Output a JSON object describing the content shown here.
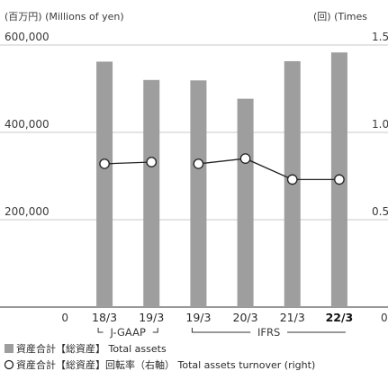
{
  "chart_data": {
    "type": "bar",
    "left_unit_label": "(百万円) (Millions of yen)",
    "right_unit_label": "(回) (Times",
    "categories": [
      "18/3",
      "19/3",
      "19/3",
      "20/3",
      "21/3",
      "22/3"
    ],
    "highlight_category_index": 5,
    "ylim_left": [
      0,
      600000
    ],
    "y_ticks_left": [
      {
        "value": 0,
        "label": "0"
      },
      {
        "value": 200000,
        "label": "200,000"
      },
      {
        "value": 400000,
        "label": "400,000"
      },
      {
        "value": 600000,
        "label": "600,000"
      }
    ],
    "ylim_right": [
      0,
      1.5
    ],
    "y_ticks_right": [
      {
        "value": 0,
        "label": "0"
      },
      {
        "value": 0.5,
        "label": "0.5"
      },
      {
        "value": 1.0,
        "label": "1.0"
      },
      {
        "value": 1.5,
        "label": "1.5"
      }
    ],
    "grid": true,
    "series": [
      {
        "name": "資産合計【総資産】 Total assets",
        "type": "bar",
        "axis": "left",
        "color": "#9e9e9e",
        "values": [
          562000,
          520000,
          519000,
          477000,
          563000,
          583000
        ]
      },
      {
        "name": "資産合計【総資産】回転率（右軸） Total assets turnover (right)",
        "type": "line",
        "axis": "right",
        "color": "#222222",
        "marker_fill": "#ffffff",
        "values": [
          0.82,
          0.83,
          0.82,
          0.85,
          0.73,
          0.73
        ]
      }
    ],
    "standards": [
      {
        "label": "J-GAAP",
        "from_index": 0,
        "to_index": 1
      },
      {
        "label": "IFRS",
        "from_index": 2,
        "to_index": 5
      }
    ],
    "legend_position": "bottom-left"
  }
}
